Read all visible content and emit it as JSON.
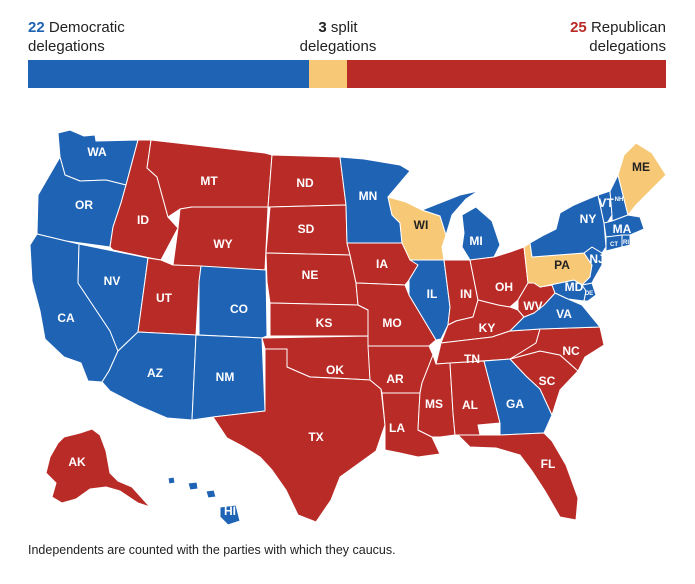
{
  "legend": {
    "democratic": {
      "count": "22",
      "line1": "Democratic",
      "line2": "delegations"
    },
    "split": {
      "count": "3",
      "line1": "split",
      "line2": "delegations"
    },
    "republican": {
      "count": "25",
      "line1": "Republican",
      "line2": "delegations"
    }
  },
  "bar": {
    "democratic": 22,
    "split": 3,
    "republican": 25
  },
  "colors": {
    "democratic": "#1f63b5",
    "split": "#f7c875",
    "republican": "#b92b27"
  },
  "states": [
    {
      "abbr": "WA",
      "party": "democratic"
    },
    {
      "abbr": "OR",
      "party": "democratic"
    },
    {
      "abbr": "CA",
      "party": "democratic"
    },
    {
      "abbr": "NV",
      "party": "democratic"
    },
    {
      "abbr": "ID",
      "party": "republican"
    },
    {
      "abbr": "MT",
      "party": "republican"
    },
    {
      "abbr": "WY",
      "party": "republican"
    },
    {
      "abbr": "UT",
      "party": "republican"
    },
    {
      "abbr": "AZ",
      "party": "democratic"
    },
    {
      "abbr": "CO",
      "party": "democratic"
    },
    {
      "abbr": "NM",
      "party": "democratic"
    },
    {
      "abbr": "ND",
      "party": "republican"
    },
    {
      "abbr": "SD",
      "party": "republican"
    },
    {
      "abbr": "NE",
      "party": "republican"
    },
    {
      "abbr": "KS",
      "party": "republican"
    },
    {
      "abbr": "OK",
      "party": "republican"
    },
    {
      "abbr": "TX",
      "party": "republican"
    },
    {
      "abbr": "MN",
      "party": "democratic"
    },
    {
      "abbr": "IA",
      "party": "republican"
    },
    {
      "abbr": "MO",
      "party": "republican"
    },
    {
      "abbr": "AR",
      "party": "republican"
    },
    {
      "abbr": "LA",
      "party": "republican"
    },
    {
      "abbr": "WI",
      "party": "split"
    },
    {
      "abbr": "IL",
      "party": "democratic"
    },
    {
      "abbr": "MI",
      "party": "democratic"
    },
    {
      "abbr": "IN",
      "party": "republican"
    },
    {
      "abbr": "OH",
      "party": "republican"
    },
    {
      "abbr": "KY",
      "party": "republican"
    },
    {
      "abbr": "TN",
      "party": "republican"
    },
    {
      "abbr": "MS",
      "party": "republican"
    },
    {
      "abbr": "AL",
      "party": "republican"
    },
    {
      "abbr": "GA",
      "party": "democratic"
    },
    {
      "abbr": "FL",
      "party": "republican"
    },
    {
      "abbr": "SC",
      "party": "republican"
    },
    {
      "abbr": "NC",
      "party": "republican"
    },
    {
      "abbr": "VA",
      "party": "democratic"
    },
    {
      "abbr": "WV",
      "party": "republican"
    },
    {
      "abbr": "MD",
      "party": "democratic"
    },
    {
      "abbr": "PA",
      "party": "split"
    },
    {
      "abbr": "NY",
      "party": "democratic"
    },
    {
      "abbr": "NJ",
      "party": "democratic"
    },
    {
      "abbr": "VT",
      "party": "democratic"
    },
    {
      "abbr": "NH",
      "party": "democratic"
    },
    {
      "abbr": "MA",
      "party": "democratic"
    },
    {
      "abbr": "CT",
      "party": "democratic"
    },
    {
      "abbr": "RI",
      "party": "democratic"
    },
    {
      "abbr": "DE",
      "party": "democratic"
    },
    {
      "abbr": "ME",
      "party": "split"
    },
    {
      "abbr": "AK",
      "party": "republican"
    },
    {
      "abbr": "HI",
      "party": "democratic"
    }
  ],
  "footnote": "Independents are counted with the parties with which they caucus."
}
